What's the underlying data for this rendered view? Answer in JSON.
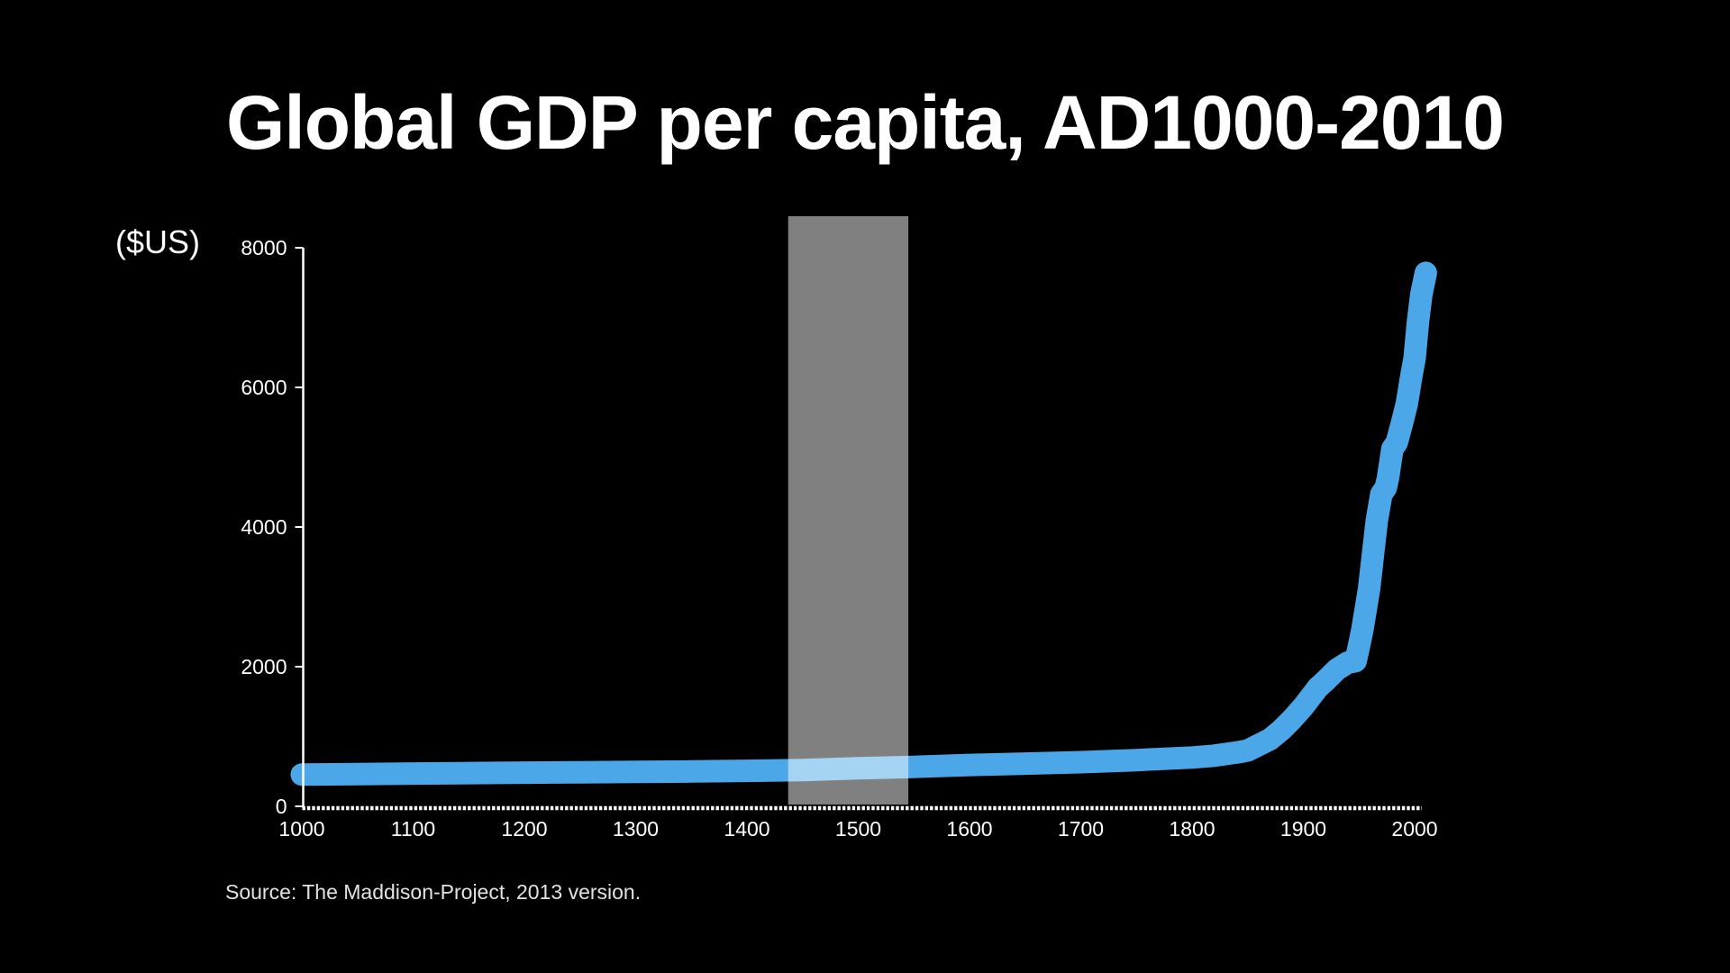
{
  "title": "Global GDP per capita, AD1000-2010",
  "y_axis_unit_label": "($US)",
  "source_note": "Source: The Maddison-Project, 2013 version.",
  "colors": {
    "background": "#000000",
    "line": "#4BA7E8",
    "band_overlay": "#FFFFFF",
    "band_rendered_gray": "#7F7F7F",
    "axis": "#FFFFFF",
    "tick_text": "#FFFFFF",
    "source_text": "#E2E2E2"
  },
  "chart_data": {
    "type": "line",
    "title": "Global GDP per capita, AD1000-2010",
    "xlabel": "",
    "ylabel": "($US)",
    "xlim": [
      1000,
      2010
    ],
    "ylim": [
      0,
      8000
    ],
    "x_ticks": [
      1000,
      1100,
      1200,
      1300,
      1400,
      1500,
      1600,
      1700,
      1800,
      1900,
      2000
    ],
    "y_ticks": [
      0,
      2000,
      4000,
      6000,
      8000
    ],
    "grid": false,
    "legend": "none",
    "x_axis_style": "dotted-white",
    "highlight_band": {
      "from_year": 1437,
      "to_year": 1545,
      "overlay": "semi-transparent white over black background and line"
    },
    "series": [
      {
        "name": "Global GDP per capita ($US)",
        "points": [
          [
            1000,
            455
          ],
          [
            1050,
            462
          ],
          [
            1100,
            470
          ],
          [
            1150,
            476
          ],
          [
            1200,
            482
          ],
          [
            1250,
            488
          ],
          [
            1300,
            494
          ],
          [
            1350,
            500
          ],
          [
            1400,
            508
          ],
          [
            1450,
            520
          ],
          [
            1500,
            545
          ],
          [
            1550,
            565
          ],
          [
            1600,
            592
          ],
          [
            1650,
            612
          ],
          [
            1700,
            632
          ],
          [
            1750,
            662
          ],
          [
            1800,
            700
          ],
          [
            1820,
            725
          ],
          [
            1840,
            770
          ],
          [
            1850,
            800
          ],
          [
            1860,
            880
          ],
          [
            1870,
            960
          ],
          [
            1880,
            1090
          ],
          [
            1890,
            1250
          ],
          [
            1900,
            1430
          ],
          [
            1913,
            1700
          ],
          [
            1920,
            1800
          ],
          [
            1930,
            1960
          ],
          [
            1940,
            2060
          ],
          [
            1947,
            2080
          ],
          [
            1950,
            2300
          ],
          [
            1953,
            2530
          ],
          [
            1959,
            3110
          ],
          [
            1966,
            4090
          ],
          [
            1970,
            4470
          ],
          [
            1974,
            4560
          ],
          [
            1976,
            4700
          ],
          [
            1980,
            5120
          ],
          [
            1984,
            5210
          ],
          [
            1989,
            5510
          ],
          [
            1993,
            5770
          ],
          [
            1997,
            6160
          ],
          [
            2000,
            6420
          ],
          [
            2003,
            6940
          ],
          [
            2006,
            7330
          ],
          [
            2010,
            7640
          ]
        ]
      }
    ]
  }
}
